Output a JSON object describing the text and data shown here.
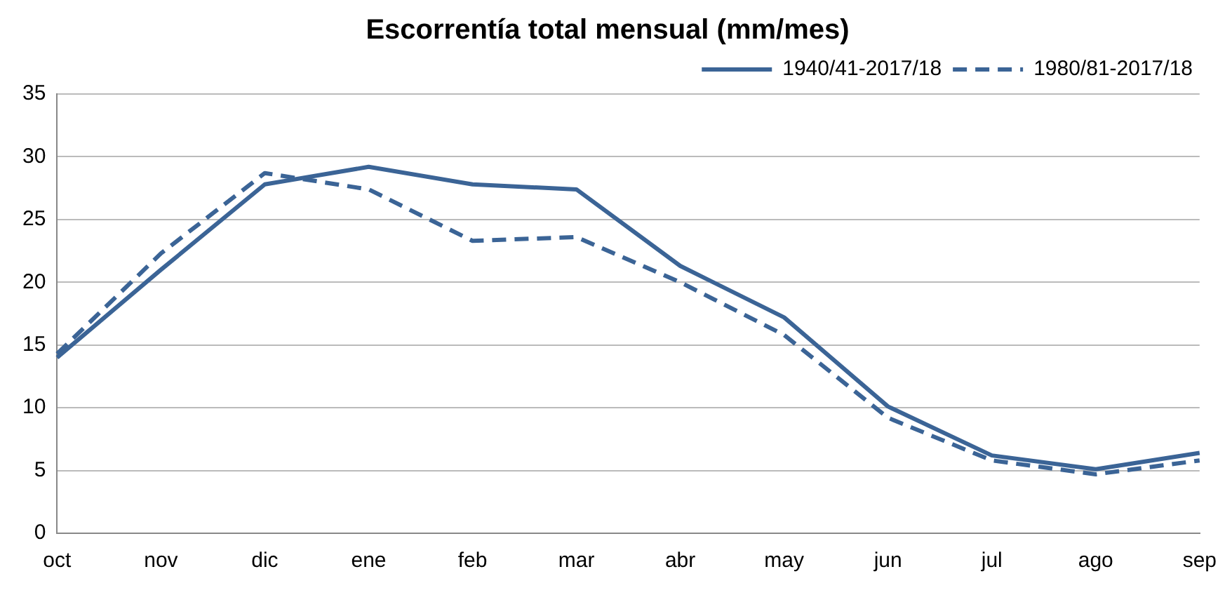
{
  "chart_data": {
    "type": "line",
    "title": "Escorrentía total mensual (mm/mes)",
    "categories": [
      "oct",
      "nov",
      "dic",
      "ene",
      "feb",
      "mar",
      "abr",
      "may",
      "jun",
      "jul",
      "ago",
      "sep"
    ],
    "series": [
      {
        "name": "1940/41-2017/18",
        "color": "#3b6496",
        "line_style": "solid",
        "values": [
          14,
          21,
          27.8,
          29.2,
          27.8,
          27.4,
          21.3,
          17.2,
          10.1,
          6.2,
          5.1,
          6.4
        ]
      },
      {
        "name": "1980/81-2017/18",
        "color": "#3b6496",
        "line_style": "dashed",
        "values": [
          14.3,
          22.3,
          28.7,
          27.4,
          23.3,
          23.6,
          20,
          15.8,
          9.2,
          5.8,
          4.7,
          5.8
        ]
      }
    ],
    "ylim": [
      0,
      35
    ],
    "yticks": [
      0,
      5,
      10,
      15,
      20,
      25,
      30,
      35
    ],
    "grid": "y",
    "legend": "top right",
    "marker": "none"
  }
}
